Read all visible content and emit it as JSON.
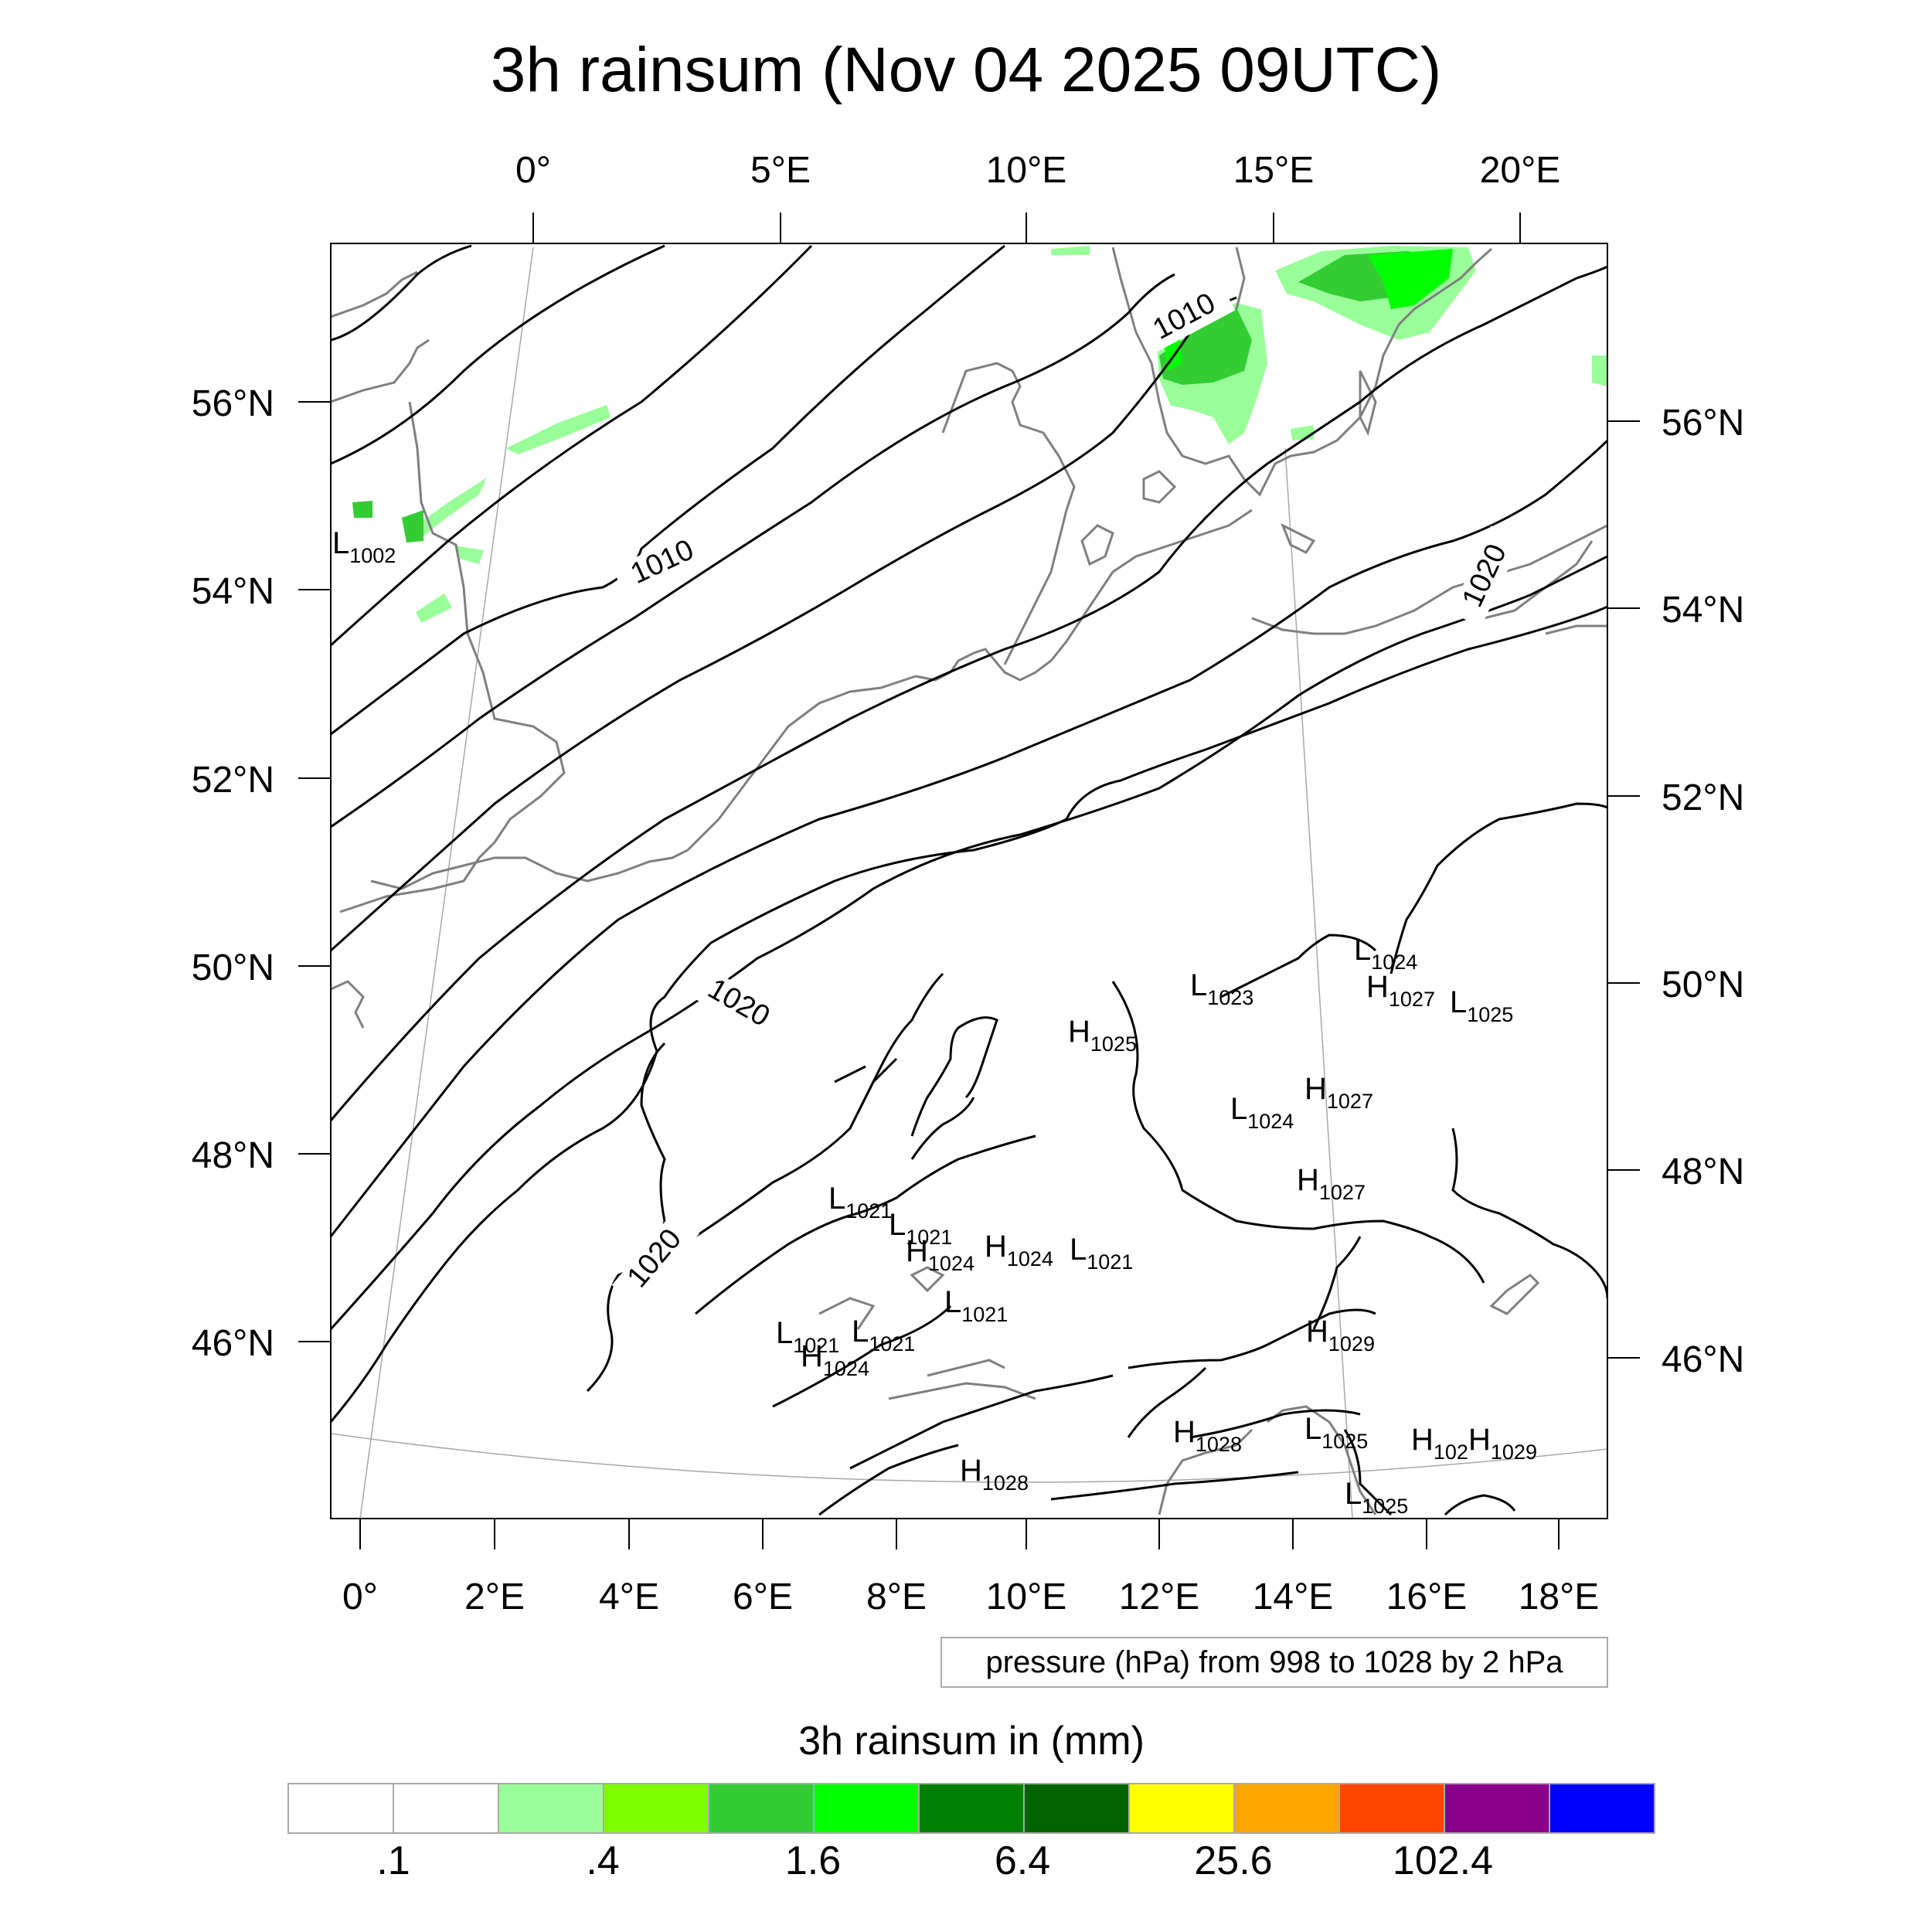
{
  "title": "3h rainsum (Nov 04 2025 09UTC)",
  "top_lon_labels": [
    "0°",
    "5°E",
    "10°E",
    "15°E",
    "20°E"
  ],
  "bottom_lon_labels": [
    "0°",
    "2°E",
    "4°E",
    "6°E",
    "8°E",
    "10°E",
    "12°E",
    "14°E",
    "16°E",
    "18°E"
  ],
  "left_lat_labels": [
    "56°N",
    "54°N",
    "52°N",
    "50°N",
    "48°N",
    "46°N"
  ],
  "right_lat_labels": [
    "56°N",
    "54°N",
    "52°N",
    "50°N",
    "48°N",
    "46°N"
  ],
  "contour_labels": [
    "1010",
    "1010",
    "1020",
    "1020",
    "1020"
  ],
  "pressure_centers": [
    {
      "type": "L",
      "value": "1002"
    },
    {
      "type": "L",
      "value": "1024"
    },
    {
      "type": "L",
      "value": "1023"
    },
    {
      "type": "H",
      "value": "1027"
    },
    {
      "type": "L",
      "value": "1025"
    },
    {
      "type": "H",
      "value": "1025"
    },
    {
      "type": "H",
      "value": "1027"
    },
    {
      "type": "L",
      "value": "1024"
    },
    {
      "type": "H",
      "value": "1027"
    },
    {
      "type": "L",
      "value": "1021"
    },
    {
      "type": "L",
      "value": "1021"
    },
    {
      "type": "H",
      "value": "1024"
    },
    {
      "type": "H",
      "value": "1024"
    },
    {
      "type": "L",
      "value": "1021"
    },
    {
      "type": "L",
      "value": "1021"
    },
    {
      "type": "L",
      "value": "1021"
    },
    {
      "type": "L",
      "value": "1021"
    },
    {
      "type": "H",
      "value": "1024"
    },
    {
      "type": "H",
      "value": "1029"
    },
    {
      "type": "H",
      "value": "1028"
    },
    {
      "type": "L",
      "value": "1025"
    },
    {
      "type": "H",
      "value": "102"
    },
    {
      "type": "H",
      "value": "1029"
    },
    {
      "type": "H",
      "value": "1028"
    },
    {
      "type": "L",
      "value": "1025"
    }
  ],
  "contour_info": "pressure (hPa) from 998 to 1028 by 2 hPa",
  "colorbar": {
    "title": "3h rainsum in (mm)",
    "tick_labels": [
      ".1",
      ".4",
      "1.6",
      "6.4",
      "25.6",
      "102.4"
    ],
    "colors": [
      "#ffffff",
      "#ffffff",
      "#99ff99",
      "#80ff00",
      "#33cc33",
      "#00ff00",
      "#008000",
      "#006400",
      "#ffff00",
      "#ffa500",
      "#ff4500",
      "#8b008b",
      "#0000ff"
    ]
  },
  "colors": {
    "coast": "#7f7f7f",
    "isobar": "#000000",
    "light_green": "#99ff99",
    "medium_green": "#33cc33",
    "bright_green": "#00ff00"
  }
}
